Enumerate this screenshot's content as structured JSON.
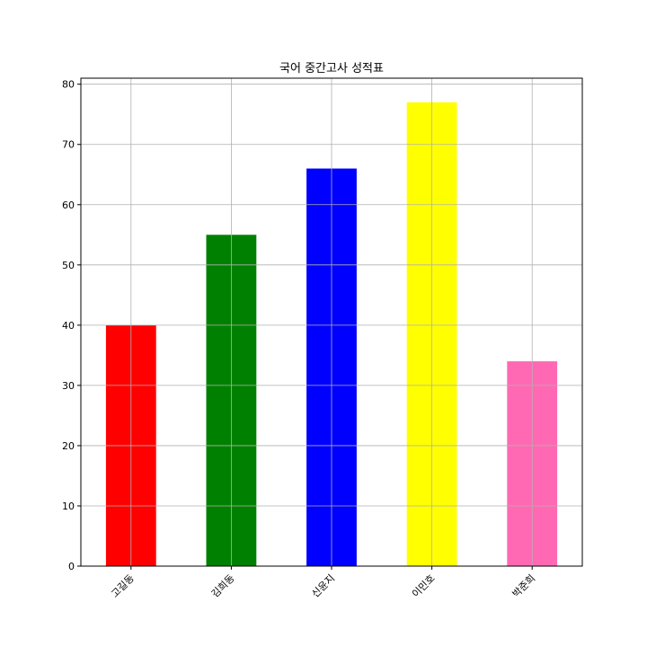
{
  "chart_data": {
    "type": "bar",
    "title": "국어 중간고사 성적표",
    "xlabel": "",
    "ylabel": "",
    "categories": [
      "고길동",
      "김희동",
      "신윤지",
      "이민호",
      "박준희"
    ],
    "values": [
      40,
      55,
      66,
      77,
      34
    ],
    "colors": [
      "#ff0000",
      "#008000",
      "#0000ff",
      "#ffff00",
      "#ff69b4"
    ],
    "ylim": [
      0,
      81
    ],
    "yticks": [
      0,
      10,
      20,
      30,
      40,
      50,
      60,
      70,
      80
    ],
    "grid": true,
    "legend": "none"
  }
}
